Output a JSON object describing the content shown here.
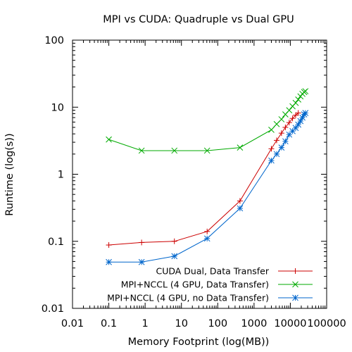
{
  "chart_data": {
    "type": "line",
    "title": "MPI vs CUDA: Quadruple vs Dual GPU",
    "xlabel": "Memory Footprint (log(MB))",
    "ylabel": "Runtime (log(s))",
    "x_scale": "log",
    "y_scale": "log",
    "xlim": [
      0.01,
      100000
    ],
    "ylim": [
      0.01,
      100
    ],
    "x_ticks": [
      0.01,
      0.1,
      1,
      10,
      100,
      1000,
      10000,
      100000
    ],
    "x_tick_labels": [
      "0.01",
      "0.1",
      "1",
      "10",
      "100",
      "1000",
      "10000",
      "100000"
    ],
    "y_ticks": [
      0.01,
      0.1,
      1,
      10,
      100
    ],
    "y_tick_labels": [
      "0.01",
      "0.1",
      "1",
      "10",
      "100"
    ],
    "grid": false,
    "legend_position": "bottom-right",
    "series": [
      {
        "name": "CUDA Dual, Data Transfer",
        "color": "#cc0000",
        "marker": "plus",
        "x": [
          0.1,
          0.8,
          6.4,
          51,
          410,
          3000,
          4200,
          5700,
          7300,
          9300,
          11500,
          14000,
          16500
        ],
        "y": [
          0.088,
          0.096,
          0.1,
          0.14,
          0.4,
          2.4,
          3.2,
          4.1,
          5.0,
          5.9,
          6.8,
          7.6,
          8.2
        ]
      },
      {
        "name": "MPI+NCCL (4 GPU, Data Transfer)",
        "color": "#00aa00",
        "marker": "cross",
        "x": [
          0.1,
          0.8,
          6.4,
          51,
          410,
          3000,
          4200,
          5700,
          7300,
          9300,
          11500,
          14000,
          16500,
          19000,
          21500,
          24000,
          26000
        ],
        "y": [
          3.3,
          2.25,
          2.25,
          2.25,
          2.5,
          4.6,
          5.6,
          6.6,
          7.8,
          9.0,
          10.3,
          11.6,
          13.0,
          14.5,
          15.8,
          16.8,
          17.3
        ]
      },
      {
        "name": "MPI+NCCL (4 GPU, no Data Transfer)",
        "color": "#0066cc",
        "marker": "star",
        "x": [
          0.1,
          0.8,
          6.4,
          51,
          410,
          3000,
          4200,
          5700,
          7300,
          9300,
          11500,
          14000,
          16500,
          19000,
          21500,
          24000,
          26000
        ],
        "y": [
          0.049,
          0.049,
          0.06,
          0.11,
          0.31,
          1.6,
          2.0,
          2.5,
          3.1,
          3.9,
          4.4,
          4.9,
          5.5,
          6.2,
          7.0,
          7.8,
          8.2
        ]
      }
    ]
  }
}
